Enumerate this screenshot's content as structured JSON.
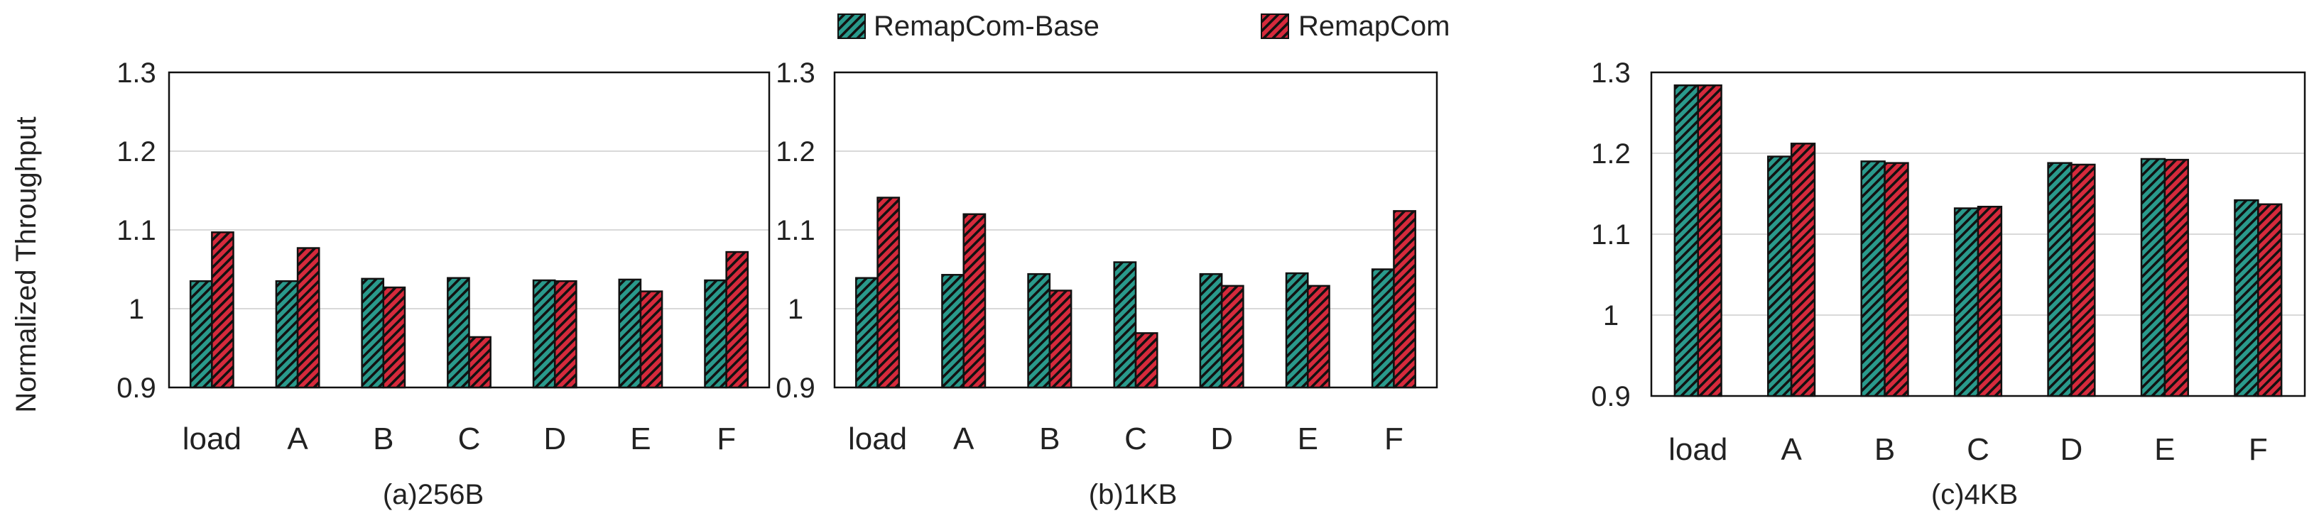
{
  "legend": {
    "items": [
      {
        "label": "RemapCom-Base",
        "color": "#2a9a8c",
        "pattern": "diagonal-hatch"
      },
      {
        "label": "RemapCom",
        "color": "#d62a3c",
        "pattern": "diagonal-hatch"
      }
    ]
  },
  "ylabel": "Normalized Throughput",
  "chart_data": [
    {
      "type": "bar",
      "title": "(a)256B",
      "categories": [
        "load",
        "A",
        "B",
        "C",
        "D",
        "E",
        "F"
      ],
      "ylim": [
        0.9,
        1.3
      ],
      "yticks": [
        0.9,
        1,
        1.1,
        1.2,
        1.3
      ],
      "ylabel": "Normalized Throughput",
      "grid": true,
      "series": [
        {
          "name": "RemapCom-Base",
          "values": [
            1.035,
            1.035,
            1.038,
            1.039,
            1.036,
            1.037,
            1.036
          ]
        },
        {
          "name": "RemapCom",
          "values": [
            1.097,
            1.077,
            1.027,
            0.964,
            1.035,
            1.022,
            1.072
          ]
        }
      ]
    },
    {
      "type": "bar",
      "title": "(b)1KB",
      "categories": [
        "load",
        "A",
        "B",
        "C",
        "D",
        "E",
        "F"
      ],
      "ylim": [
        0.9,
        1.3
      ],
      "yticks": [
        0.9,
        1,
        1.1,
        1.2,
        1.3
      ],
      "ylabel": "",
      "grid": true,
      "series": [
        {
          "name": "RemapCom-Base",
          "values": [
            1.039,
            1.043,
            1.044,
            1.059,
            1.044,
            1.045,
            1.05
          ]
        },
        {
          "name": "RemapCom",
          "values": [
            1.141,
            1.12,
            1.023,
            0.969,
            1.029,
            1.029,
            1.124
          ]
        }
      ]
    },
    {
      "type": "bar",
      "title": "(c)4KB",
      "categories": [
        "load",
        "A",
        "B",
        "C",
        "D",
        "E",
        "F"
      ],
      "ylim": [
        0.9,
        1.3
      ],
      "yticks": [
        0.9,
        1,
        1.1,
        1.2,
        1.3
      ],
      "ylabel": "",
      "grid": true,
      "series": [
        {
          "name": "RemapCom-Base",
          "values": [
            1.284,
            1.196,
            1.19,
            1.132,
            1.188,
            1.193,
            1.142
          ]
        },
        {
          "name": "RemapCom",
          "values": [
            1.284,
            1.212,
            1.188,
            1.134,
            1.186,
            1.192,
            1.137
          ]
        }
      ]
    }
  ]
}
